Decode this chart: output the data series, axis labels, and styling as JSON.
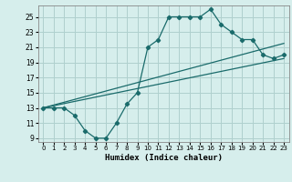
{
  "title": "",
  "xlabel": "Humidex (Indice chaleur)",
  "bg_color": "#d6eeec",
  "grid_color": "#afd0ce",
  "line_color": "#1a6b6b",
  "xlim": [
    -0.5,
    23.5
  ],
  "ylim": [
    8.5,
    26.5
  ],
  "xticks": [
    0,
    1,
    2,
    3,
    4,
    5,
    6,
    7,
    8,
    9,
    10,
    11,
    12,
    13,
    14,
    15,
    16,
    17,
    18,
    19,
    20,
    21,
    22,
    23
  ],
  "yticks": [
    9,
    11,
    13,
    15,
    17,
    19,
    21,
    23,
    25
  ],
  "zigzag_x": [
    0,
    1,
    2,
    3,
    4,
    5,
    6,
    7,
    8,
    9,
    10,
    11,
    12,
    13,
    14,
    15,
    16,
    17,
    18,
    19,
    20,
    21,
    22,
    23
  ],
  "zigzag_y": [
    13,
    13,
    13,
    12,
    10,
    9,
    9,
    11,
    13.5,
    15,
    21,
    22,
    25,
    25,
    25,
    25,
    26,
    24,
    23,
    22,
    22,
    20,
    19.5,
    20
  ],
  "line1_x": [
    0,
    23
  ],
  "line1_y": [
    13,
    19.5
  ],
  "line2_x": [
    0,
    23
  ],
  "line2_y": [
    13,
    21.5
  ]
}
